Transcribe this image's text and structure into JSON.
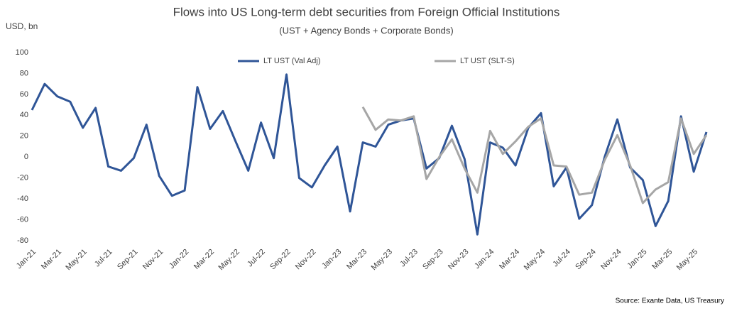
{
  "chart_data": {
    "type": "line",
    "title": "Flows into US Long-term debt securities from Foreign Official Institutions",
    "subtitle": "(UST + Agency Bonds + Corporate Bonds)",
    "y_label": "USD, bn",
    "source": "Source:  Exante Data, US Treasury",
    "categories": [
      "Jan-21",
      null,
      "Mar-21",
      null,
      "May-21",
      null,
      "Jul-21",
      null,
      "Sep-21",
      null,
      "Nov-21",
      null,
      "Jan-22",
      null,
      "Mar-22",
      null,
      "May-22",
      null,
      "Jul-22",
      null,
      "Sep-22",
      null,
      "Nov-22",
      null,
      "Jan-23",
      null,
      "Mar-23",
      null,
      "May-23",
      null,
      "Jul-23",
      null,
      "Sep-23",
      null,
      "Nov-23",
      null,
      "Jan-24",
      null,
      "Mar-24",
      null,
      "May-24",
      null,
      "Jul-24",
      null,
      "Sep-24",
      null,
      "Nov-24",
      null,
      "Jan-25",
      null,
      "Mar-25",
      null,
      "May-25",
      null
    ],
    "series": [
      {
        "name": "LT UST (Val Adj)",
        "color": "#2f5597",
        "values": [
          45,
          70,
          58,
          53,
          28,
          47,
          -9,
          -13,
          -1,
          31,
          -18,
          -37,
          -32,
          67,
          27,
          44,
          15,
          -13,
          33,
          -1,
          79,
          -20,
          -29,
          -8,
          10,
          -52,
          14,
          10,
          31,
          35,
          37,
          -11,
          -1,
          30,
          -2,
          -74,
          14,
          9,
          -8,
          28,
          42,
          -28,
          -10,
          -59,
          -46,
          0,
          36,
          -10,
          -22,
          -66,
          -42,
          39,
          -14,
          24
        ]
      },
      {
        "name": "LT UST (SLT-S)",
        "color": "#a6a6a6",
        "values": [
          null,
          null,
          null,
          null,
          null,
          null,
          null,
          null,
          null,
          null,
          null,
          null,
          null,
          null,
          null,
          null,
          null,
          null,
          null,
          null,
          null,
          null,
          null,
          null,
          null,
          null,
          48,
          26,
          36,
          35,
          39,
          -21,
          0,
          17,
          -11,
          -34,
          25,
          3,
          15,
          29,
          37,
          -8,
          -9,
          -36,
          -34,
          -3,
          21,
          -8,
          -44,
          -31,
          -24,
          37,
          3,
          21
        ]
      }
    ],
    "ylim": [
      -80,
      100
    ],
    "yticks": [
      -80,
      -60,
      -40,
      -20,
      0,
      20,
      40,
      60,
      80,
      100
    ],
    "grid": false,
    "legend": "top"
  }
}
